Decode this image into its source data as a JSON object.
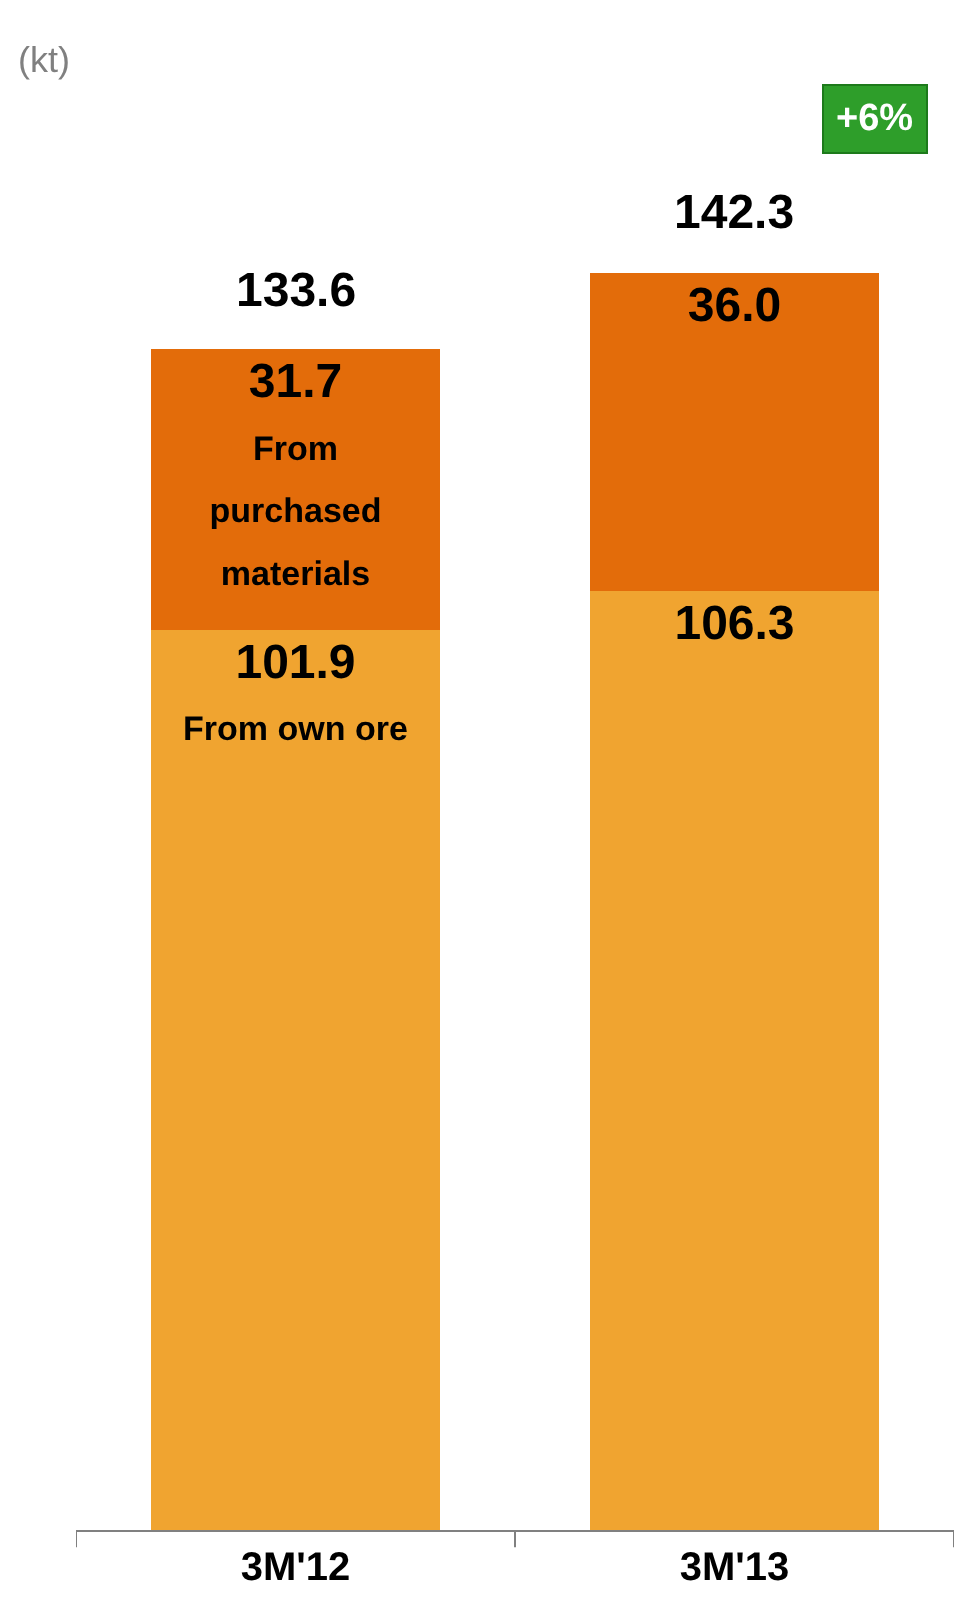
{
  "chart_data": {
    "type": "bar",
    "stacked": true,
    "categories": [
      "3M'12",
      "3M'13"
    ],
    "series": [
      {
        "name": "From own ore",
        "color": "#f0a430",
        "values": [
          101.9,
          106.3
        ],
        "value_labels": [
          "101.9",
          "106.3"
        ]
      },
      {
        "name": "From purchased materials",
        "color": "#e36c0a",
        "values": [
          31.7,
          36.0
        ],
        "value_labels": [
          "31.7",
          "36.0"
        ]
      }
    ],
    "totals": [
      "133.6",
      "142.3"
    ],
    "annotations": [
      "(kt)",
      "+6%"
    ],
    "legend": false
  }
}
